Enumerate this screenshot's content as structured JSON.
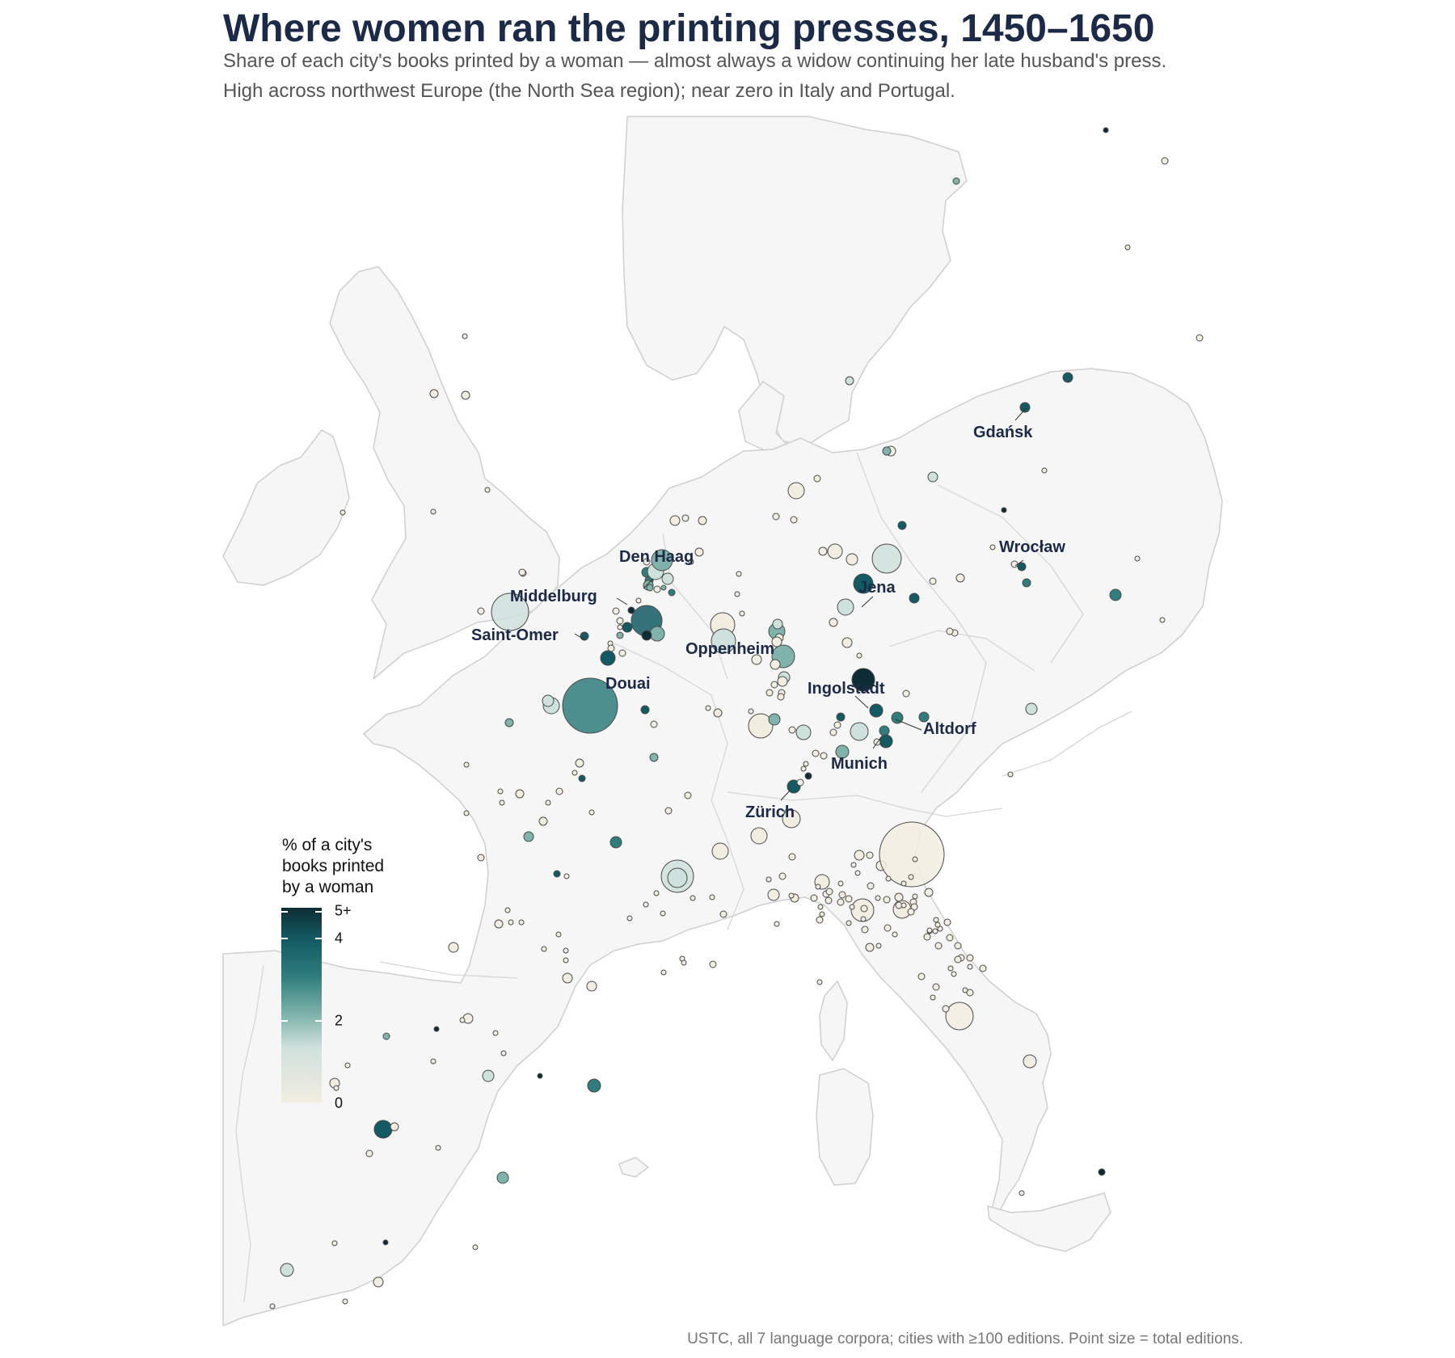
{
  "title": "Where women ran the printing presses, 1450–1650",
  "subtitle_lines": [
    "Share of each city's books printed by a woman — almost always a widow continuing her late husband's press.",
    "High across northwest Europe (the North Sea region); near zero in Italy and Portugal."
  ],
  "caption": "USTC, all 7 language corpora; cities with ≥100 editions. Point size = total editions.",
  "legend": {
    "title_lines": [
      "% of a city's",
      "books printed",
      "by a woman"
    ],
    "ticks": [
      "5+",
      "4",
      "2",
      "0"
    ],
    "colors": [
      "#f2ede1",
      "#cfe1dc",
      "#7fb3ab",
      "#2f7d7c",
      "#135a63",
      "#0e2c33"
    ]
  },
  "colors": {
    "land": "#f6f6f6",
    "border": "#cfcfcf",
    "title": "#1c2a48"
  },
  "labeled_cities": [
    "Gdańsk",
    "Wrocław",
    "Den Haag",
    "Jena",
    "Middelburg",
    "Saint-Omer",
    "Oppenheim",
    "Douai",
    "Ingolstadt",
    "Altdorf",
    "Munich",
    "Zürich"
  ]
}
